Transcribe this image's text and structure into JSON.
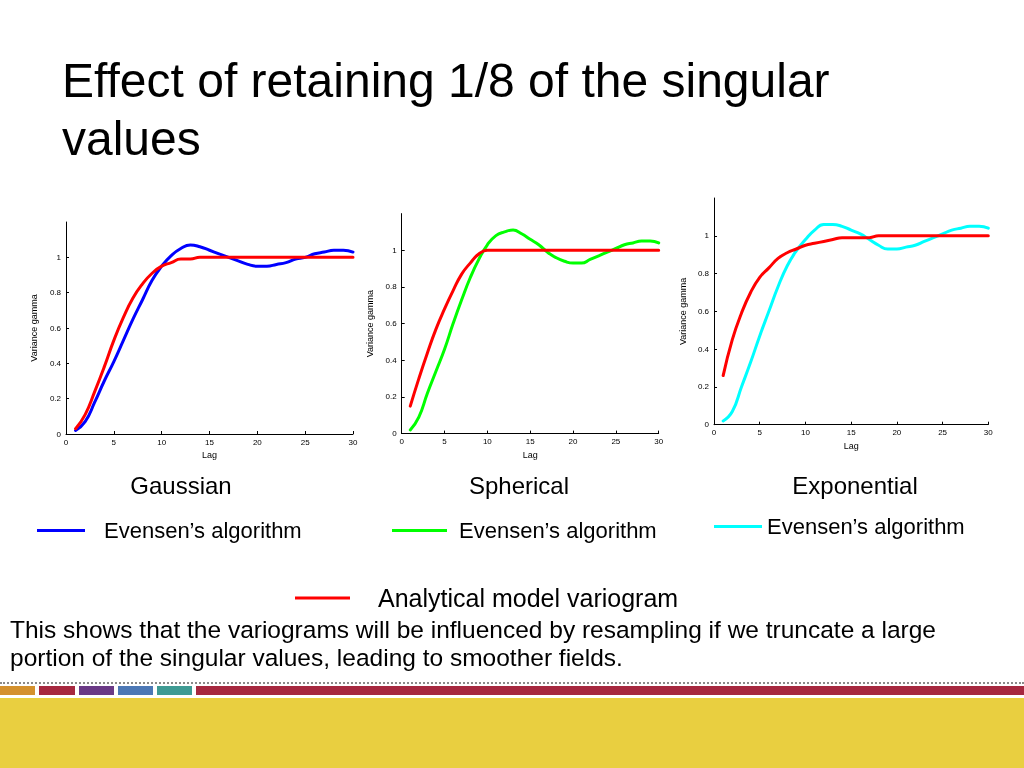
{
  "chart_data": [
    {
      "type": "line",
      "title": "Effect of retaining 1/8 of the singular values",
      "legend_title": "Gaussian",
      "xlabel": "Lag",
      "ylabel": "Variance gamma",
      "x": [
        1,
        2,
        3,
        4,
        5,
        6,
        7,
        8,
        9,
        10,
        11,
        12,
        13,
        14,
        15,
        16,
        17,
        18,
        19,
        20,
        21,
        22,
        23,
        24,
        25,
        26,
        27,
        28,
        29,
        30
      ],
      "xlim": [
        0,
        30
      ],
      "xticks": [
        0,
        5,
        10,
        15,
        20,
        25,
        30
      ],
      "ylim": [
        0,
        1.2
      ],
      "yticks": [
        0,
        0.2,
        0.4,
        0.6,
        0.8,
        1
      ],
      "grid": false,
      "legend": "bottom",
      "marker": "none",
      "series": [
        {
          "name": "Evensen’s algorithm",
          "color": "#0000ff",
          "values": [
            0.02,
            0.07,
            0.18,
            0.3,
            0.41,
            0.53,
            0.65,
            0.76,
            0.87,
            0.95,
            1.01,
            1.05,
            1.07,
            1.06,
            1.04,
            1.02,
            1.0,
            0.98,
            0.96,
            0.95,
            0.95,
            0.96,
            0.97,
            0.99,
            1.0,
            1.02,
            1.03,
            1.04,
            1.04,
            1.03
          ]
        },
        {
          "color": "#ff0000",
          "values": [
            0.03,
            0.11,
            0.24,
            0.38,
            0.53,
            0.66,
            0.77,
            0.85,
            0.91,
            0.95,
            0.97,
            0.99,
            0.99,
            1,
            1,
            1,
            1,
            1,
            1,
            1,
            1,
            1,
            1,
            1,
            1,
            1,
            1,
            1,
            1,
            1
          ]
        }
      ]
    },
    {
      "type": "line",
      "legend_title": "Spherical",
      "xlabel": "Lag",
      "ylabel": "Variance gamma",
      "x": [
        1,
        2,
        3,
        4,
        5,
        6,
        7,
        8,
        9,
        10,
        11,
        12,
        13,
        14,
        15,
        16,
        17,
        18,
        19,
        20,
        21,
        22,
        23,
        24,
        25,
        26,
        27,
        28,
        29,
        30
      ],
      "xlim": [
        0,
        30
      ],
      "xticks": [
        0,
        5,
        10,
        15,
        20,
        25,
        30
      ],
      "ylim": [
        0,
        1.2
      ],
      "yticks": [
        0,
        0.2,
        0.4,
        0.6,
        0.8,
        1
      ],
      "grid": false,
      "legend": "bottom",
      "marker": "none",
      "series": [
        {
          "name": "Evensen’s algorithm",
          "color": "#00ff00",
          "values": [
            0.02,
            0.09,
            0.22,
            0.34,
            0.46,
            0.6,
            0.73,
            0.85,
            0.95,
            1.03,
            1.08,
            1.1,
            1.11,
            1.09,
            1.06,
            1.03,
            0.99,
            0.96,
            0.94,
            0.93,
            0.93,
            0.95,
            0.97,
            0.99,
            1.01,
            1.03,
            1.04,
            1.05,
            1.05,
            1.04
          ]
        },
        {
          "name": "Analytical model variogram",
          "color": "#ff0000",
          "values": [
            0.15,
            0.3,
            0.44,
            0.57,
            0.68,
            0.78,
            0.87,
            0.93,
            0.98,
            1,
            1,
            1,
            1,
            1,
            1,
            1,
            1,
            1,
            1,
            1,
            1,
            1,
            1,
            1,
            1,
            1,
            1,
            1,
            1,
            1
          ]
        }
      ]
    },
    {
      "type": "line",
      "legend_title": "Exponential",
      "xlabel": "Lag",
      "ylabel": "Variance gamma",
      "x": [
        1,
        2,
        3,
        4,
        5,
        6,
        7,
        8,
        9,
        10,
        11,
        12,
        13,
        14,
        15,
        16,
        17,
        18,
        19,
        20,
        21,
        22,
        23,
        24,
        25,
        26,
        27,
        28,
        29,
        30
      ],
      "xlim": [
        0,
        30
      ],
      "xticks": [
        0,
        5,
        10,
        15,
        20,
        25,
        30
      ],
      "ylim": [
        0,
        1.2
      ],
      "yticks": [
        0,
        0.2,
        0.4,
        0.6,
        0.8,
        1
      ],
      "grid": false,
      "legend": "bottom",
      "marker": "none",
      "annotations": [
        "This shows that the variograms will be influenced by resampling if we truncate a large portion of the singular values, leading to smoother fields."
      ],
      "series": [
        {
          "name": "Evensen’s algorithm",
          "color": "#00ffff",
          "values": [
            0.02,
            0.07,
            0.2,
            0.33,
            0.47,
            0.6,
            0.73,
            0.84,
            0.92,
            0.98,
            1.03,
            1.06,
            1.06,
            1.05,
            1.03,
            1.01,
            0.98,
            0.95,
            0.93,
            0.93,
            0.94,
            0.95,
            0.97,
            0.99,
            1.01,
            1.03,
            1.04,
            1.05,
            1.05,
            1.04
          ]
        },
        {
          "color": "#ff0000",
          "values": [
            0.26,
            0.45,
            0.59,
            0.7,
            0.78,
            0.83,
            0.88,
            0.91,
            0.93,
            0.95,
            0.96,
            0.97,
            0.98,
            0.99,
            0.99,
            0.99,
            0.99,
            1,
            1,
            1,
            1,
            1,
            1,
            1,
            1,
            1,
            1,
            1,
            1,
            1
          ]
        }
      ]
    }
  ]
}
